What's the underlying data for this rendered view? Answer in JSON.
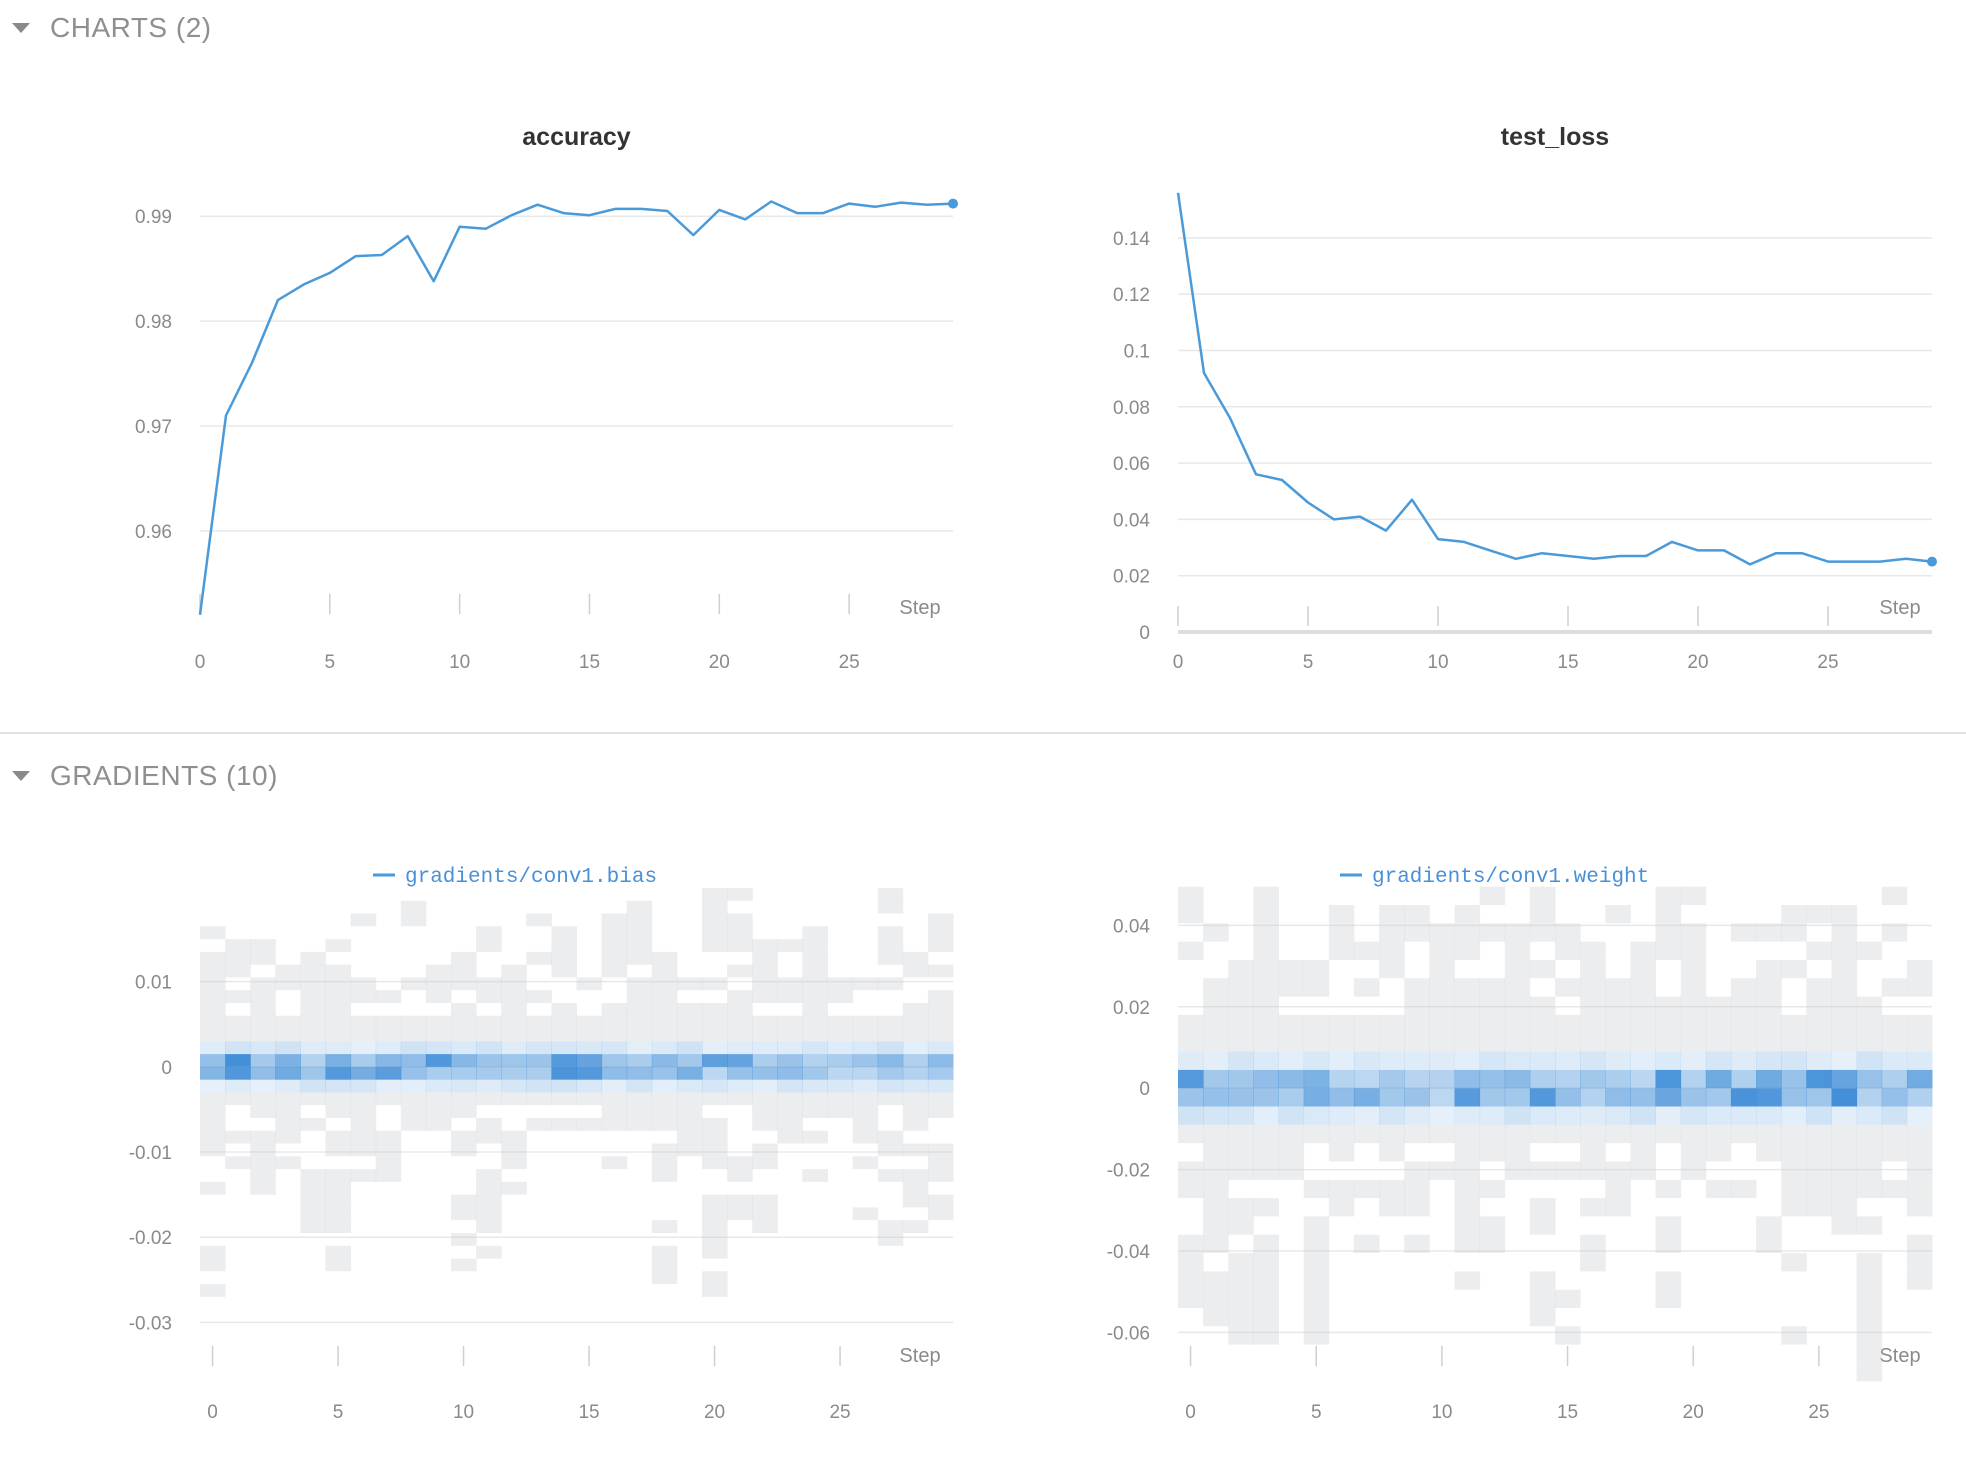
{
  "sections": {
    "charts": {
      "title": "CHARTS (2)"
    },
    "gradients": {
      "title": "GRADIENTS (10)"
    }
  },
  "colors": {
    "line": "#4a9ad9",
    "grid": "#e8e8e8",
    "heat": "#3a8ad6"
  },
  "chart_data": [
    {
      "type": "line",
      "title": "accuracy",
      "xlabel": "Step",
      "x": [
        0,
        1,
        2,
        3,
        4,
        5,
        6,
        7,
        8,
        9,
        10,
        11,
        12,
        13,
        14,
        15,
        16,
        17,
        18,
        19,
        20,
        21,
        22,
        23,
        24,
        25,
        26,
        27,
        28,
        29
      ],
      "values": [
        0.952,
        0.971,
        0.976,
        0.982,
        0.9835,
        0.9846,
        0.9862,
        0.9863,
        0.9881,
        0.9838,
        0.989,
        0.9888,
        0.9901,
        0.9911,
        0.9903,
        0.9901,
        0.9907,
        0.9907,
        0.9905,
        0.9882,
        0.9906,
        0.9897,
        0.9914,
        0.9903,
        0.9903,
        0.9912,
        0.9909,
        0.9913,
        0.9911,
        0.9912
      ],
      "xticks": [
        "0",
        "5",
        "10",
        "15",
        "20",
        "25"
      ],
      "yticks": [
        "0.96",
        "0.97",
        "0.98",
        "0.99"
      ],
      "xlim": [
        0,
        29
      ],
      "ylim": [
        0.9515,
        0.9925
      ]
    },
    {
      "type": "line",
      "title": "test_loss",
      "xlabel": "Step",
      "x": [
        0,
        1,
        2,
        3,
        4,
        5,
        6,
        7,
        8,
        9,
        10,
        11,
        12,
        13,
        14,
        15,
        16,
        17,
        18,
        19,
        20,
        21,
        22,
        23,
        24,
        25,
        26,
        27,
        28,
        29
      ],
      "values": [
        0.156,
        0.092,
        0.076,
        0.056,
        0.054,
        0.046,
        0.04,
        0.041,
        0.036,
        0.047,
        0.033,
        0.032,
        0.029,
        0.026,
        0.028,
        0.027,
        0.026,
        0.027,
        0.027,
        0.032,
        0.029,
        0.029,
        0.024,
        0.028,
        0.028,
        0.025,
        0.025,
        0.025,
        0.026,
        0.025
      ],
      "xticks": [
        "0",
        "5",
        "10",
        "15",
        "20",
        "25"
      ],
      "yticks": [
        "0",
        "0.02",
        "0.04",
        "0.06",
        "0.08",
        "0.1",
        "0.12",
        "0.14"
      ],
      "xlim": [
        0,
        29
      ],
      "ylim": [
        0,
        0.157
      ]
    },
    {
      "type": "heatmap",
      "title": "",
      "legend": "gradients/conv1.bias",
      "xlabel": "Step",
      "xticks": [
        "0",
        "5",
        "10",
        "15",
        "20",
        "25"
      ],
      "yticks": [
        "0.01",
        "0",
        "-0.01",
        "-0.02",
        "-0.03"
      ],
      "xlim": [
        -0.5,
        29.5
      ],
      "ylim": [
        -0.035,
        0.019
      ],
      "bins_center": 0,
      "bin_width": 0.0015
    },
    {
      "type": "heatmap",
      "title": "",
      "legend": "gradients/conv1.weight",
      "xlabel": "Step",
      "xticks": [
        "0",
        "5",
        "10",
        "15",
        "20",
        "25"
      ],
      "yticks": [
        "0.04",
        "0.02",
        "0",
        "-0.02",
        "-0.04",
        "-0.06"
      ],
      "xlim": [
        -0.5,
        29.5
      ],
      "ylim": [
        -0.068,
        0.045
      ],
      "bins_center": 0,
      "bin_width": 0.0045
    }
  ]
}
